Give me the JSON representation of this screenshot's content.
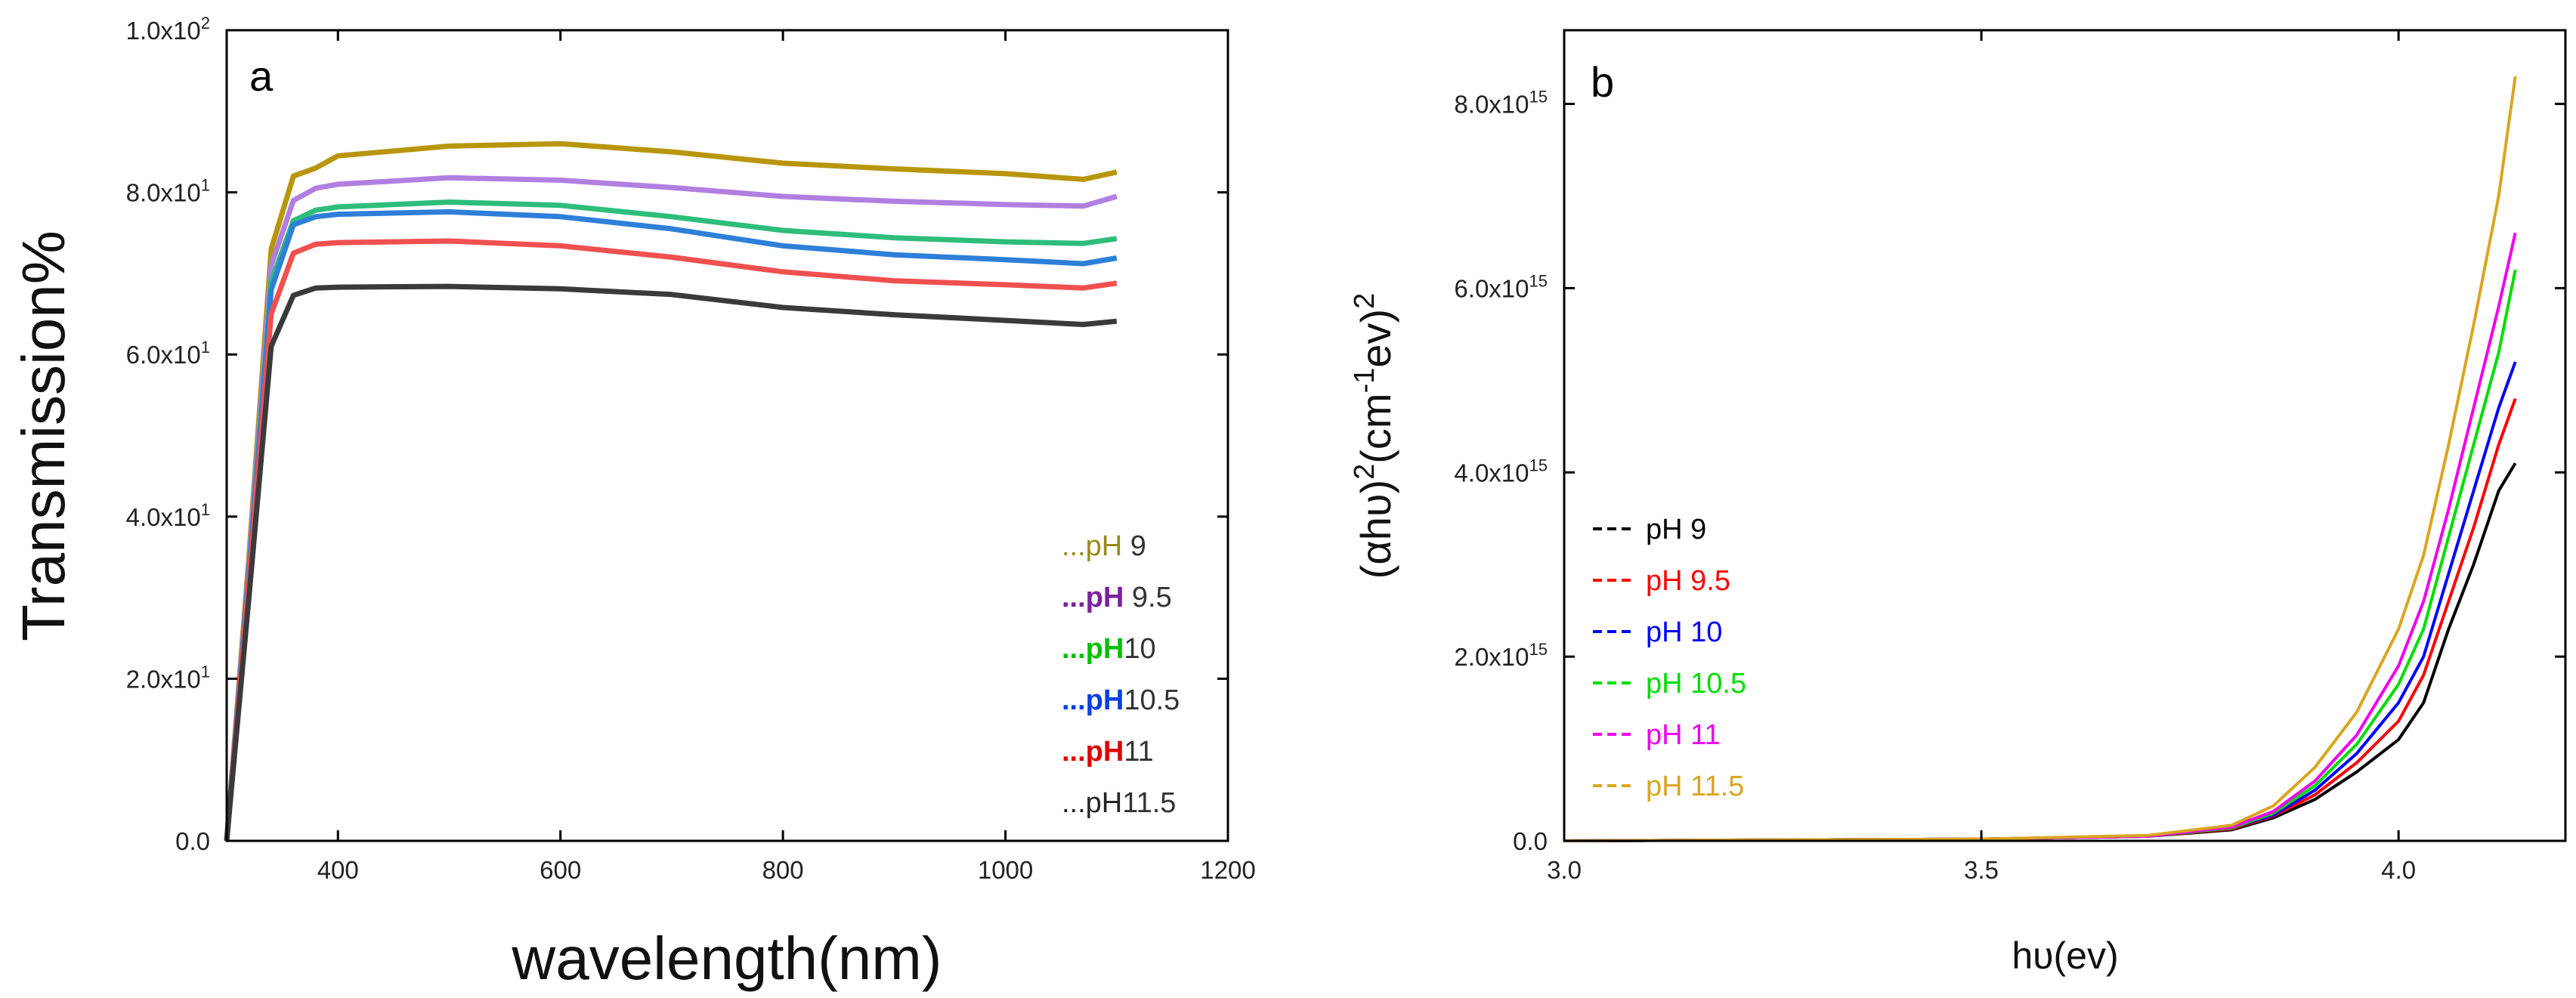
{
  "chart_data": [
    {
      "type": "line",
      "panel_label": "a",
      "xlabel": "wavelength(nm)",
      "ylabel": "Transmission%",
      "xlim": [
        300,
        1200
      ],
      "ylim": [
        0,
        100
      ],
      "x_ticks": [
        400,
        600,
        800,
        1000,
        1200
      ],
      "x_tick_labels": [
        "400",
        "600",
        "800",
        "1000",
        "1200"
      ],
      "y_ticks": [
        0,
        20,
        40,
        60,
        80,
        100
      ],
      "y_tick_labels": [
        {
          "base": "0.0",
          "exp": ""
        },
        {
          "base": "2.0x10",
          "exp": "1"
        },
        {
          "base": "4.0x10",
          "exp": "1"
        },
        {
          "base": "6.0x10",
          "exp": "1"
        },
        {
          "base": "8.0x10",
          "exp": "1"
        },
        {
          "base": "1.0x10",
          "exp": "2"
        }
      ],
      "legend_position": "bottom-right",
      "series": [
        {
          "name": "pH 9",
          "legend_prefix": "...pH",
          "legend_suffix": " 9",
          "color": "#B8960C",
          "prefix_color": "#9A8A1A",
          "suffix_color": "#333333",
          "bold": false,
          "x": [
            300,
            320,
            340,
            360,
            380,
            400,
            500,
            600,
            700,
            800,
            900,
            1000,
            1070,
            1100
          ],
          "y": [
            0,
            35,
            73,
            82,
            83,
            84.5,
            85.7,
            86,
            85,
            83.6,
            82.9,
            82.3,
            81.6,
            82.5
          ]
        },
        {
          "name": "pH 9.5",
          "legend_prefix": "...pH",
          "legend_suffix": " 9.5",
          "color": "#B07FE0",
          "prefix_color": "#7B1FA2",
          "suffix_color": "#333333",
          "bold": true,
          "x": [
            300,
            320,
            340,
            360,
            380,
            400,
            500,
            600,
            700,
            800,
            900,
            1000,
            1070,
            1100
          ],
          "y": [
            0,
            34,
            71,
            79,
            80.5,
            81,
            81.8,
            81.5,
            80.6,
            79.5,
            78.9,
            78.5,
            78.3,
            79.5
          ]
        },
        {
          "name": "pH10",
          "legend_prefix": "...pH",
          "legend_suffix": "10",
          "color": "#2EBD7A",
          "prefix_color": "#00C000",
          "suffix_color": "#333333",
          "bold": true,
          "x": [
            300,
            320,
            340,
            360,
            380,
            400,
            500,
            600,
            700,
            800,
            900,
            1000,
            1070,
            1100
          ],
          "y": [
            0,
            33,
            69,
            76.5,
            77.8,
            78.2,
            78.8,
            78.4,
            77,
            75.3,
            74.4,
            73.9,
            73.7,
            74.3
          ]
        },
        {
          "name": "pH10.5",
          "legend_prefix": "...pH",
          "legend_suffix": "10.5",
          "color": "#2E7FD8",
          "prefix_color": "#0040E0",
          "suffix_color": "#333333",
          "bold": true,
          "x": [
            300,
            320,
            340,
            360,
            380,
            400,
            500,
            600,
            700,
            800,
            900,
            1000,
            1070,
            1100
          ],
          "y": [
            0,
            33,
            68,
            76,
            77,
            77.3,
            77.6,
            77,
            75.5,
            73.4,
            72.3,
            71.7,
            71.2,
            71.9
          ]
        },
        {
          "name": "pH11",
          "legend_prefix": "...pH",
          "legend_suffix": "11",
          "color": "#F05050",
          "prefix_color": "#E00000",
          "suffix_color": "#333333",
          "bold": true,
          "x": [
            300,
            320,
            340,
            360,
            380,
            400,
            500,
            600,
            700,
            800,
            900,
            1000,
            1070,
            1100
          ],
          "y": [
            0,
            32,
            65,
            72.5,
            73.6,
            73.8,
            74,
            73.4,
            72,
            70.2,
            69.1,
            68.6,
            68.2,
            68.8
          ]
        },
        {
          "name": "pH11.5",
          "legend_prefix": "...pH",
          "legend_suffix": "11.5",
          "color": "#3A3A3A",
          "prefix_color": "#222222",
          "suffix_color": "#333333",
          "bold": false,
          "x": [
            300,
            320,
            340,
            360,
            380,
            400,
            500,
            600,
            700,
            800,
            900,
            1000,
            1070,
            1100
          ],
          "y": [
            0,
            30,
            61,
            67.3,
            68.2,
            68.3,
            68.4,
            68.1,
            67.4,
            65.8,
            64.9,
            64.2,
            63.7,
            64.1
          ]
        }
      ]
    },
    {
      "type": "line",
      "panel_label": "b",
      "xlabel": "hυ(ev)",
      "ylabel_parts": {
        "a": "(αhυ)",
        "b": "2",
        "c": "(cm",
        "d": "-1",
        "e": "ev)",
        "f": "2"
      },
      "xlim": [
        3.0,
        4.2
      ],
      "ylim": [
        0,
        8800000000000000.0
      ],
      "x_ticks": [
        3.0,
        3.5,
        4.0
      ],
      "x_tick_labels": [
        "3.0",
        "3.5",
        "4.0"
      ],
      "y_ticks": [
        0,
        2000000000000000.0,
        4000000000000000.0,
        6000000000000000.0,
        8000000000000000.0
      ],
      "y_tick_labels": [
        {
          "base": "0.0",
          "exp": ""
        },
        {
          "base": "2.0x10",
          "exp": "15"
        },
        {
          "base": "4.0x10",
          "exp": "15"
        },
        {
          "base": "6.0x10",
          "exp": "15"
        },
        {
          "base": "8.0x10",
          "exp": "15"
        }
      ],
      "legend_position": "left-middle",
      "series": [
        {
          "name": "pH 9",
          "color": "#000000",
          "x": [
            3.0,
            3.5,
            3.7,
            3.8,
            3.85,
            3.9,
            3.95,
            4.0,
            4.03,
            4.06,
            4.09,
            4.12,
            4.14
          ],
          "y": [
            0,
            20000000000000.0,
            50000000000000.0,
            120000000000000.0,
            250000000000000.0,
            450000000000000.0,
            750000000000000.0,
            1100000000000000.0,
            1500000000000000.0,
            2300000000000000.0,
            3000000000000000.0,
            3800000000000000.0,
            4100000000000000.0
          ]
        },
        {
          "name": "pH 9.5",
          "color": "#FF0000",
          "x": [
            3.0,
            3.5,
            3.7,
            3.8,
            3.85,
            3.9,
            3.95,
            4.0,
            4.03,
            4.06,
            4.09,
            4.12,
            4.14
          ],
          "y": [
            0,
            20000000000000.0,
            50000000000000.0,
            130000000000000.0,
            270000000000000.0,
            500000000000000.0,
            850000000000000.0,
            1300000000000000.0,
            1800000000000000.0,
            2600000000000000.0,
            3400000000000000.0,
            4300000000000000.0,
            4800000000000000.0
          ]
        },
        {
          "name": "pH 10",
          "color": "#0000FF",
          "x": [
            3.0,
            3.5,
            3.7,
            3.8,
            3.85,
            3.9,
            3.95,
            4.0,
            4.03,
            4.06,
            4.09,
            4.12,
            4.14
          ],
          "y": [
            0,
            20000000000000.0,
            50000000000000.0,
            140000000000000.0,
            280000000000000.0,
            550000000000000.0,
            950000000000000.0,
            1500000000000000.0,
            2000000000000000.0,
            2900000000000000.0,
            3800000000000000.0,
            4700000000000000.0,
            5200000000000000.0
          ]
        },
        {
          "name": "pH 10.5",
          "color": "#00DD00",
          "x": [
            3.0,
            3.5,
            3.7,
            3.8,
            3.85,
            3.9,
            3.95,
            4.0,
            4.03,
            4.06,
            4.09,
            4.12,
            4.14
          ],
          "y": [
            0,
            20000000000000.0,
            50000000000000.0,
            140000000000000.0,
            300000000000000.0,
            600000000000000.0,
            1050000000000000.0,
            1700000000000000.0,
            2300000000000000.0,
            3300000000000000.0,
            4300000000000000.0,
            5300000000000000.0,
            6200000000000000.0
          ]
        },
        {
          "name": "pH 11",
          "color": "#EE00EE",
          "x": [
            3.0,
            3.5,
            3.7,
            3.8,
            3.85,
            3.9,
            3.95,
            4.0,
            4.03,
            4.06,
            4.09,
            4.12,
            4.14
          ],
          "y": [
            0,
            20000000000000.0,
            50000000000000.0,
            150000000000000.0,
            320000000000000.0,
            650000000000000.0,
            1150000000000000.0,
            1900000000000000.0,
            2600000000000000.0,
            3600000000000000.0,
            4700000000000000.0,
            5800000000000000.0,
            6600000000000000.0
          ]
        },
        {
          "name": "pH 11.5",
          "color": "#DAA520",
          "x": [
            3.0,
            3.5,
            3.7,
            3.8,
            3.85,
            3.9,
            3.95,
            4.0,
            4.03,
            4.06,
            4.09,
            4.12,
            4.14
          ],
          "y": [
            0,
            20000000000000.0,
            60000000000000.0,
            170000000000000.0,
            380000000000000.0,
            800000000000000.0,
            1400000000000000.0,
            2300000000000000.0,
            3100000000000000.0,
            4300000000000000.0,
            5600000000000000.0,
            7000000000000000.0,
            8300000000000000.0
          ]
        }
      ]
    }
  ]
}
